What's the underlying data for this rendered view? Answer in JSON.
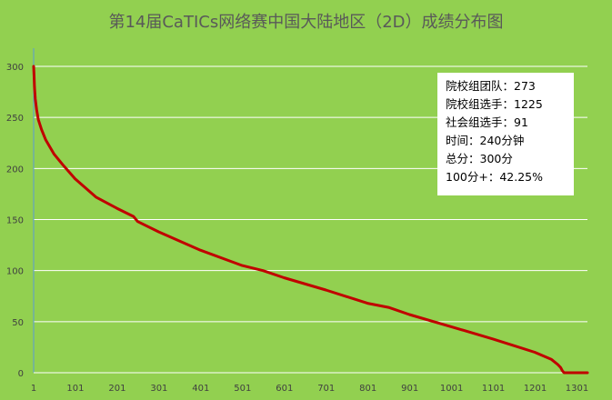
{
  "chart_data": {
    "type": "line",
    "title": "第14届CaTICs网络赛中国大陆地区（2D）成绩分布图",
    "xlabel": "",
    "ylabel": "",
    "x_ticks": [
      1,
      101,
      201,
      301,
      401,
      501,
      601,
      701,
      801,
      901,
      1001,
      1101,
      1201,
      1301
    ],
    "y_ticks": [
      0,
      50,
      100,
      150,
      200,
      250,
      300
    ],
    "xlim": [
      1,
      1326
    ],
    "ylim": [
      0,
      300
    ],
    "grid": "horizontal",
    "series": [
      {
        "color": "#c00000",
        "x": [
          1,
          2,
          3,
          5,
          8,
          12,
          20,
          30,
          50,
          70,
          100,
          150,
          200,
          240,
          250,
          300,
          400,
          500,
          550,
          600,
          700,
          800,
          850,
          900,
          1000,
          1100,
          1200,
          1240,
          1255,
          1262,
          1266,
          1270,
          1326
        ],
        "y": [
          300,
          290,
          280,
          268,
          258,
          248,
          238,
          228,
          214,
          204,
          190,
          172,
          161,
          153,
          148,
          138,
          120,
          105,
          100,
          93,
          81,
          68,
          64,
          57,
          45,
          33,
          20,
          13,
          8,
          5,
          2,
          0,
          0
        ]
      }
    ]
  },
  "info_box": {
    "lines": [
      "院校组团队：273",
      "院校组选手：1225",
      "社会组选手：91",
      "时间：240分钟",
      "总分：300分",
      "100分+：42.25%"
    ]
  },
  "colors": {
    "background": "#92d050",
    "line": "#c00000",
    "gridline": "#ffffff",
    "axis": "#5b9bd5",
    "tick_label": "#404040"
  }
}
